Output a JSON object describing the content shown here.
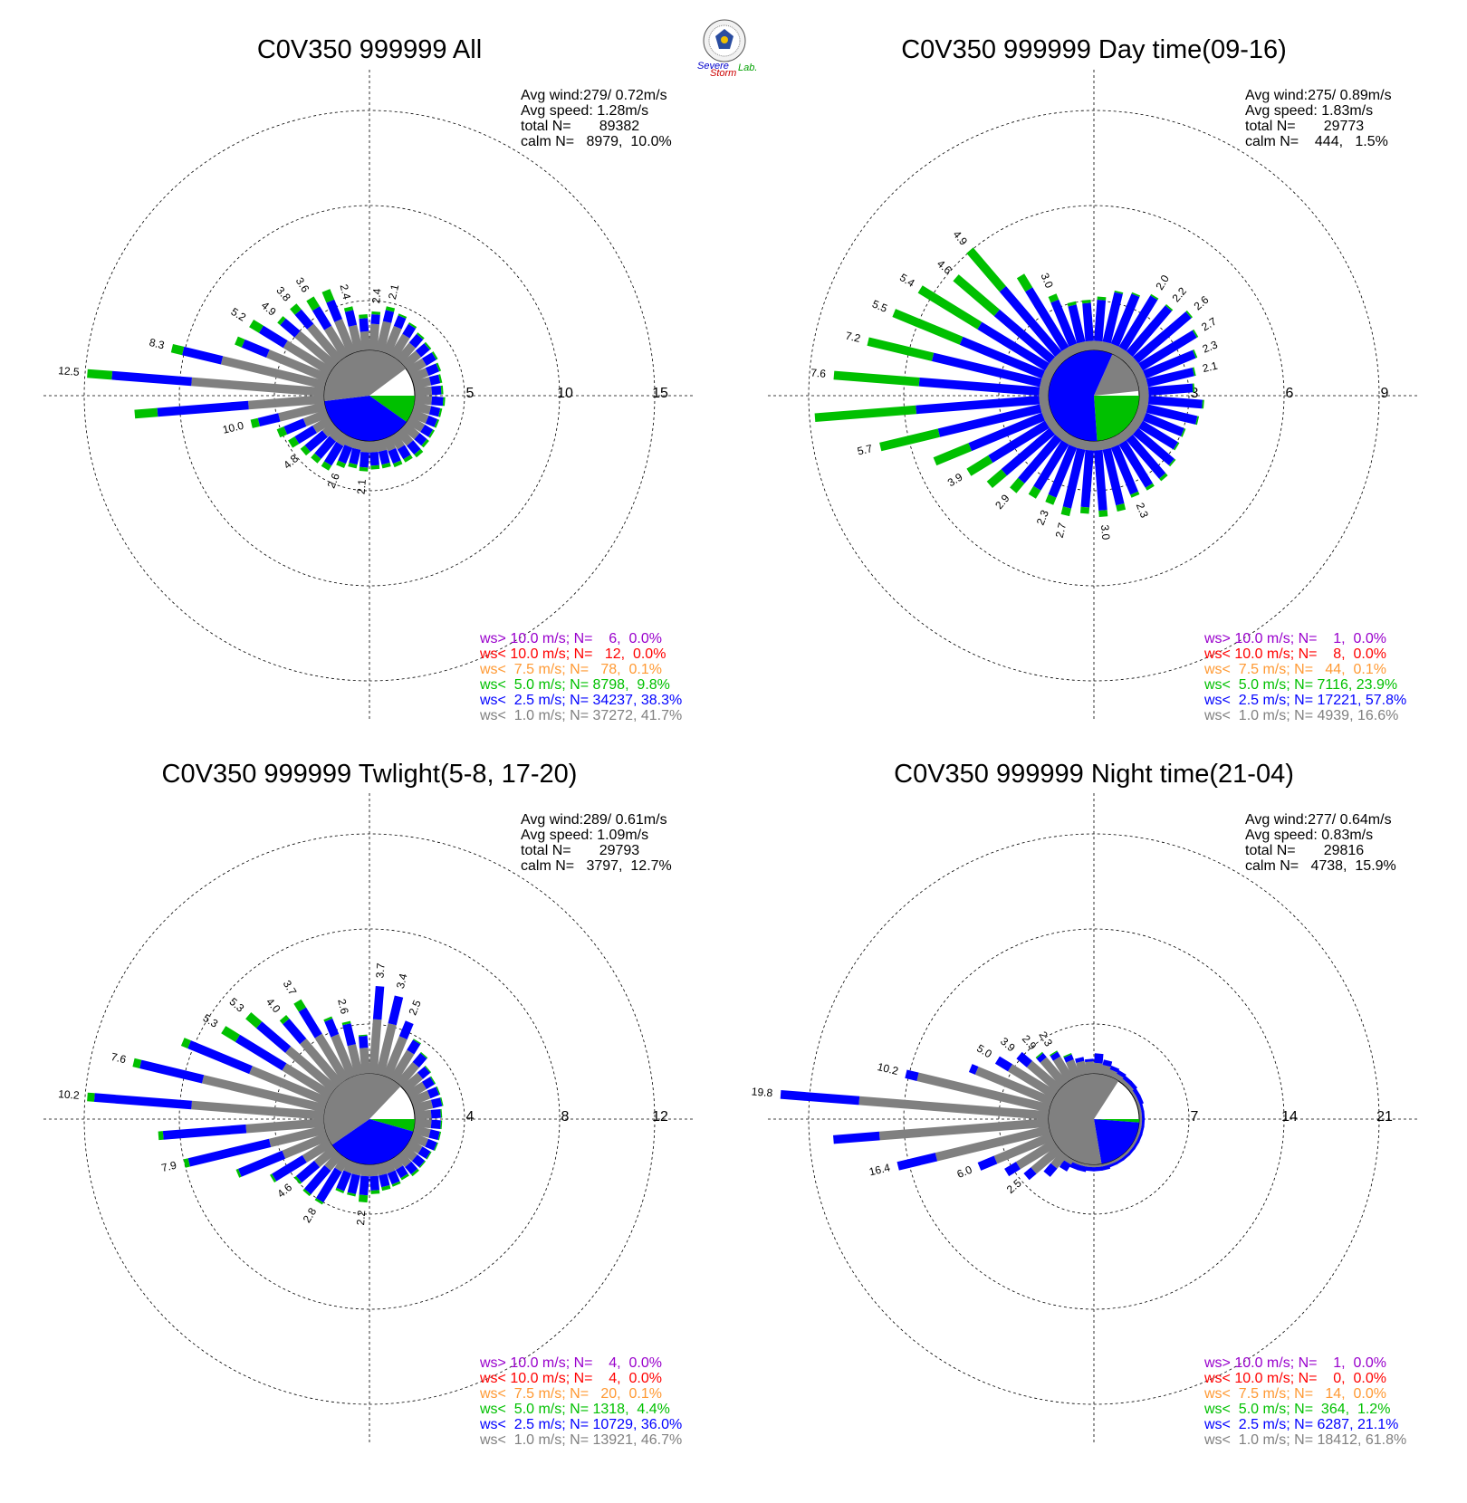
{
  "colors": {
    "lt1": "#808080",
    "lt25": "#0000ff",
    "lt5": "#00c000",
    "lt75": "#ff9933",
    "lt10": "#ff0000",
    "gt10": "#9900cc"
  },
  "logo": {
    "text1": "Severe",
    "text2": "Storm",
    "text3": "Lab."
  },
  "legend_labels": [
    {
      "key": "gt10",
      "prefix": "ws> 10.0 m/s; N="
    },
    {
      "key": "lt10",
      "prefix": "ws< 10.0 m/s; N="
    },
    {
      "key": "lt75",
      "prefix": "ws<  7.5 m/s; N="
    },
    {
      "key": "lt5",
      "prefix": "ws<  5.0 m/s; N="
    },
    {
      "key": "lt25",
      "prefix": "ws<  2.5 m/s; N="
    },
    {
      "key": "lt1",
      "prefix": "ws<  1.0 m/s; N="
    }
  ],
  "chart_data": [
    {
      "type": "wind-rose",
      "title": "C0V350 999999 All",
      "stats": [
        "Avg wind:279/ 0.72m/s",
        "Avg speed: 1.28m/s",
        "total N=       89382",
        "calm N=   8979,  10.0%"
      ],
      "rings": [
        5,
        10,
        15
      ],
      "ring_labels": [
        "5",
        "10",
        "15"
      ],
      "calm_percent": 10.0,
      "calm_pie": [
        {
          "key": "lt1",
          "percent": 41.7
        },
        {
          "key": "lt25",
          "percent": 38.3
        },
        {
          "key": "lt5",
          "percent": 9.8
        }
      ],
      "sectors": [
        [
          1.4,
          0.5,
          0.15
        ],
        [
          1.6,
          0.6,
          0.2
        ],
        [
          1.5,
          0.6,
          0.1
        ],
        [
          1.3,
          0.6,
          0.1
        ],
        [
          1.1,
          0.6,
          0.1
        ],
        [
          1.0,
          0.6,
          0.1
        ],
        [
          1.0,
          0.6,
          0.1
        ],
        [
          0.9,
          0.6,
          0.1
        ],
        [
          0.9,
          0.5,
          0.1
        ],
        [
          0.9,
          0.5,
          0.1
        ],
        [
          0.9,
          0.6,
          0.1
        ],
        [
          0.9,
          0.5,
          0.1
        ],
        [
          0.9,
          0.5,
          0.1
        ],
        [
          0.9,
          0.5,
          0.1
        ],
        [
          0.9,
          0.5,
          0.15
        ],
        [
          0.9,
          0.6,
          0.2
        ],
        [
          0.8,
          0.6,
          0.2
        ],
        [
          0.7,
          0.7,
          0.2
        ],
        [
          0.6,
          0.7,
          0.2
        ],
        [
          0.6,
          0.7,
          0.2
        ],
        [
          0.6,
          0.8,
          0.2
        ],
        [
          0.5,
          0.8,
          0.2
        ],
        [
          0.5,
          0.9,
          0.25
        ],
        [
          0.6,
          1.2,
          0.3
        ],
        [
          0.6,
          1.2,
          0.3
        ],
        [
          0.7,
          1.2,
          0.3
        ],
        [
          1.0,
          1.1,
          0.4
        ],
        [
          1.3,
          1.1,
          0.4
        ],
        [
          2.5,
          1.1,
          0.4
        ],
        [
          4.0,
          4.8,
          1.2
        ],
        [
          7.0,
          4.2,
          1.3
        ],
        [
          5.6,
          2.1,
          0.6
        ],
        [
          3.4,
          1.4,
          0.4
        ],
        [
          2.8,
          1.5,
          0.6
        ],
        [
          2.6,
          1.0,
          0.2
        ],
        [
          2.4,
          1.0,
          0.4
        ],
        [
          1.8,
          1.2,
          0.6
        ],
        [
          1.9,
          1.1,
          0.6
        ],
        [
          1.4,
          0.8,
          0.2
        ],
        [
          1.0,
          0.7,
          0.2
        ]
      ],
      "bar_labels": [
        {
          "sector": 0,
          "text": "2.4"
        },
        {
          "sector": 1,
          "text": "2.1"
        },
        {
          "sector": 20,
          "text": "2.1"
        },
        {
          "sector": 22,
          "text": "2.6"
        },
        {
          "sector": 25,
          "text": "4.8"
        },
        {
          "sector": 28,
          "text": "10.0"
        },
        {
          "sector": 30,
          "text": "12.5"
        },
        {
          "sector": 31,
          "text": "8.3"
        },
        {
          "sector": 33,
          "text": "5.2"
        },
        {
          "sector": 34,
          "text": "4.9"
        },
        {
          "sector": 35,
          "text": "3.8"
        },
        {
          "sector": 36,
          "text": "3.6"
        },
        {
          "sector": 38,
          "text": "2.4"
        }
      ],
      "legend_counts": [
        "   6,  0.0%",
        "  12,  0.0%",
        "  78,  0.1%",
        "8798,  9.8%",
        "34237, 38.3%",
        "37272, 41.7%"
      ]
    },
    {
      "type": "wind-rose",
      "title": "C0V350 999999 Day time(09-16)",
      "stats": [
        "Avg wind:275/ 0.89m/s",
        "Avg speed: 1.83m/s",
        "total N=       29773",
        "calm N=    444,   1.5%"
      ],
      "rings": [
        3,
        6,
        9
      ],
      "ring_labels": [
        "3",
        "6",
        "9"
      ],
      "calm_percent": 1.5,
      "calm_pie": [
        {
          "key": "lt25",
          "percent": 57.8
        },
        {
          "key": "lt5",
          "percent": 23.9
        },
        {
          "key": "lt1",
          "percent": 16.6
        }
      ],
      "sectors": [
        [
          0.3,
          1.3,
          0.1
        ],
        [
          0.3,
          1.6,
          0.05
        ],
        [
          0.3,
          1.7,
          0.05
        ],
        [
          0.3,
          1.9,
          0.05
        ],
        [
          0.3,
          1.9,
          0.05
        ],
        [
          0.3,
          2.2,
          0.05
        ],
        [
          0.3,
          2.0,
          0.05
        ],
        [
          0.3,
          1.7,
          0.05
        ],
        [
          0.3,
          1.5,
          0.05
        ],
        [
          0.3,
          1.4,
          0.05
        ],
        [
          0.3,
          1.7,
          0.05
        ],
        [
          0.3,
          1.6,
          0.05
        ],
        [
          0.3,
          1.3,
          0.05
        ],
        [
          0.3,
          1.3,
          0.05
        ],
        [
          0.3,
          1.5,
          0.05
        ],
        [
          0.3,
          1.6,
          0.1
        ],
        [
          0.3,
          1.6,
          0.1
        ],
        [
          0.3,
          1.6,
          0.1
        ],
        [
          0.3,
          1.8,
          0.2
        ],
        [
          0.3,
          1.9,
          0.2
        ],
        [
          0.3,
          1.8,
          0.2
        ],
        [
          0.3,
          1.9,
          0.25
        ],
        [
          0.3,
          1.7,
          0.25
        ],
        [
          0.3,
          1.7,
          0.3
        ],
        [
          0.3,
          1.8,
          0.4
        ],
        [
          0.3,
          2.0,
          0.6
        ],
        [
          0.3,
          2.1,
          0.8
        ],
        [
          0.3,
          2.5,
          1.2
        ],
        [
          0.3,
          3.3,
          1.9
        ],
        [
          0.3,
          3.9,
          3.2
        ],
        [
          0.3,
          3.8,
          2.7
        ],
        [
          0.3,
          3.5,
          2.1
        ],
        [
          0.3,
          2.8,
          2.3
        ],
        [
          0.3,
          2.5,
          2.2
        ],
        [
          0.3,
          2.3,
          1.7
        ],
        [
          0.3,
          2.7,
          1.6
        ],
        [
          0.3,
          2.2,
          0.5
        ],
        [
          0.3,
          1.5,
          0.2
        ],
        [
          0.3,
          1.2,
          0.1
        ],
        [
          0.3,
          1.2,
          0.1
        ]
      ],
      "bar_labels": [
        {
          "sector": 3,
          "text": "2.0"
        },
        {
          "sector": 4,
          "text": "2.2"
        },
        {
          "sector": 5,
          "text": "2.6"
        },
        {
          "sector": 6,
          "text": "2.7"
        },
        {
          "sector": 7,
          "text": "2.3"
        },
        {
          "sector": 8,
          "text": "2.1"
        },
        {
          "sector": 17,
          "text": "2.3"
        },
        {
          "sector": 19,
          "text": "3.0"
        },
        {
          "sector": 21,
          "text": "2.7"
        },
        {
          "sector": 22,
          "text": "2.3"
        },
        {
          "sector": 24,
          "text": "2.9"
        },
        {
          "sector": 26,
          "text": "3.9"
        },
        {
          "sector": 28,
          "text": "5.7"
        },
        {
          "sector": 30,
          "text": "7.6"
        },
        {
          "sector": 31,
          "text": "7.2"
        },
        {
          "sector": 32,
          "text": "5.5"
        },
        {
          "sector": 33,
          "text": "5.4"
        },
        {
          "sector": 34,
          "text": "4.6"
        },
        {
          "sector": 35,
          "text": "4.9"
        },
        {
          "sector": 37,
          "text": "3.0"
        }
      ],
      "legend_counts": [
        "   1,  0.0%",
        "   8,  0.0%",
        "  44,  0.1%",
        "7116, 23.9%",
        "17221, 57.8%",
        "4939, 16.6%"
      ]
    },
    {
      "type": "wind-rose",
      "title": "C0V350 999999 Twlight(5-8, 17-20)",
      "stats": [
        "Avg wind:289/ 0.61m/s",
        "Avg speed: 1.09m/s",
        "total N=       29793",
        "calm N=   3797,  12.7%"
      ],
      "rings": [
        4,
        8,
        12
      ],
      "ring_labels": [
        "4",
        "8",
        "12"
      ],
      "calm_percent": 12.7,
      "calm_pie": [
        {
          "key": "lt1",
          "percent": 46.7
        },
        {
          "key": "lt25",
          "percent": 36.0
        },
        {
          "key": "lt5",
          "percent": 4.4
        }
      ],
      "sectors": [
        [
          2.3,
          1.4,
          0.0
        ],
        [
          2.2,
          1.2,
          0.0
        ],
        [
          1.8,
          0.7,
          0.0
        ],
        [
          1.4,
          0.5,
          0.05
        ],
        [
          1.1,
          0.5,
          0.05
        ],
        [
          0.9,
          0.4,
          0.05
        ],
        [
          0.8,
          0.4,
          0.05
        ],
        [
          0.8,
          0.4,
          0.05
        ],
        [
          0.8,
          0.4,
          0.05
        ],
        [
          0.7,
          0.4,
          0.05
        ],
        [
          0.7,
          0.4,
          0.05
        ],
        [
          0.7,
          0.4,
          0.05
        ],
        [
          0.7,
          0.4,
          0.05
        ],
        [
          0.6,
          0.4,
          0.05
        ],
        [
          0.6,
          0.4,
          0.05
        ],
        [
          0.6,
          0.4,
          0.1
        ],
        [
          0.5,
          0.4,
          0.1
        ],
        [
          0.5,
          0.5,
          0.1
        ],
        [
          0.5,
          0.5,
          0.15
        ],
        [
          0.5,
          0.6,
          0.15
        ],
        [
          0.5,
          0.8,
          0.3
        ],
        [
          0.5,
          0.8,
          0.1
        ],
        [
          0.5,
          0.8,
          0.1
        ],
        [
          0.6,
          1.5,
          0.1
        ],
        [
          0.8,
          1.3,
          0.1
        ],
        [
          1.0,
          1.0,
          0.1
        ],
        [
          1.3,
          1.5,
          0.1
        ],
        [
          2.0,
          2.0,
          0.1
        ],
        [
          2.4,
          3.5,
          0.2
        ],
        [
          3.3,
          3.5,
          0.2
        ],
        [
          5.6,
          4.1,
          0.3
        ],
        [
          5.3,
          2.7,
          0.3
        ],
        [
          3.5,
          2.8,
          0.3
        ],
        [
          2.3,
          2.3,
          0.7
        ],
        [
          2.6,
          1.6,
          0.6
        ],
        [
          2.4,
          1.1,
          0.2
        ],
        [
          2.2,
          1.3,
          0.4
        ],
        [
          1.9,
          0.7,
          0.1
        ],
        [
          1.3,
          0.9,
          0.1
        ],
        [
          1.1,
          0.5,
          0.05
        ]
      ],
      "bar_labels": [
        {
          "sector": 0,
          "text": "3.7"
        },
        {
          "sector": 1,
          "text": "3.4"
        },
        {
          "sector": 2,
          "text": "2.5"
        },
        {
          "sector": 20,
          "text": "2.2"
        },
        {
          "sector": 23,
          "text": "2.8"
        },
        {
          "sector": 25,
          "text": "4.6"
        },
        {
          "sector": 28,
          "text": "7.9"
        },
        {
          "sector": 30,
          "text": "10.2"
        },
        {
          "sector": 31,
          "text": "7.6"
        },
        {
          "sector": 33,
          "text": "5.3"
        },
        {
          "sector": 34,
          "text": "5.3"
        },
        {
          "sector": 35,
          "text": "4.0"
        },
        {
          "sector": 36,
          "text": "3.7"
        },
        {
          "sector": 38,
          "text": "2.6"
        }
      ],
      "legend_counts": [
        "   4,  0.0%",
        "   4,  0.0%",
        "  20,  0.1%",
        "1318,  4.4%",
        "10729, 36.0%",
        "13921, 46.7%"
      ]
    },
    {
      "type": "wind-rose",
      "title": "C0V350 999999 Night time(21-04)",
      "stats": [
        "Avg wind:277/ 0.64m/s",
        "Avg speed: 0.83m/s",
        "total N=       29816",
        "calm N=   4738,  15.9%"
      ],
      "rings": [
        7,
        14,
        21
      ],
      "ring_labels": [
        "7",
        "14",
        "21"
      ],
      "calm_percent": 15.9,
      "calm_pie": [
        {
          "key": "lt1",
          "percent": 61.8
        },
        {
          "key": "lt25",
          "percent": 21.1
        },
        {
          "key": "lt5",
          "percent": 1.2
        }
      ],
      "sectors": [
        [
          0.8,
          0.7,
          0.0
        ],
        [
          0.7,
          0.4,
          0.0
        ],
        [
          0.5,
          0.3,
          0.0
        ],
        [
          0.4,
          0.3,
          0.0
        ],
        [
          0.3,
          0.3,
          0.0
        ],
        [
          0.3,
          0.3,
          0.0
        ],
        [
          0.2,
          0.3,
          0.0
        ],
        [
          0.2,
          0.3,
          0.0
        ],
        [
          0.2,
          0.2,
          0.0
        ],
        [
          0.2,
          0.2,
          0.0
        ],
        [
          0.2,
          0.2,
          0.0
        ],
        [
          0.2,
          0.2,
          0.0
        ],
        [
          0.2,
          0.2,
          0.0
        ],
        [
          0.2,
          0.2,
          0.0
        ],
        [
          0.2,
          0.2,
          0.0
        ],
        [
          0.2,
          0.2,
          0.0
        ],
        [
          0.2,
          0.2,
          0.0
        ],
        [
          0.2,
          0.2,
          0.0
        ],
        [
          0.2,
          0.3,
          0.0
        ],
        [
          0.2,
          0.3,
          0.0
        ],
        [
          0.2,
          0.3,
          0.0
        ],
        [
          0.2,
          0.4,
          0.0
        ],
        [
          0.2,
          0.4,
          0.0
        ],
        [
          0.4,
          0.6,
          0.0
        ],
        [
          1.2,
          0.8,
          0.0
        ],
        [
          2.5,
          0.7,
          0.0
        ],
        [
          3.2,
          1.0,
          0.0
        ],
        [
          4.5,
          1.3,
          0.0
        ],
        [
          8.6,
          2.9,
          0.0
        ],
        [
          12.5,
          3.4,
          0.0
        ],
        [
          14.0,
          5.8,
          0.0
        ],
        [
          10.0,
          0.9,
          0.0
        ],
        [
          6.0,
          0.5,
          0.0
        ],
        [
          3.9,
          1.1,
          0.0
        ],
        [
          2.9,
          1.0,
          0.0
        ],
        [
          2.4,
          0.4,
          0.1
        ],
        [
          1.9,
          0.4,
          0.1
        ],
        [
          1.3,
          0.4,
          0.1
        ],
        [
          1.0,
          0.3,
          0.0
        ],
        [
          0.9,
          0.2,
          0.0
        ]
      ],
      "bar_labels": [
        {
          "sector": 25,
          "text": "2.5"
        },
        {
          "sector": 27,
          "text": "6.0"
        },
        {
          "sector": 28,
          "text": "16.4"
        },
        {
          "sector": 30,
          "text": "19.8"
        },
        {
          "sector": 31,
          "text": "10.2"
        },
        {
          "sector": 33,
          "text": "5.0"
        },
        {
          "sector": 34,
          "text": "3.9"
        },
        {
          "sector": 35,
          "text": "2.9"
        },
        {
          "sector": 36,
          "text": "2.3"
        }
      ],
      "legend_counts": [
        "   1,  0.0%",
        "   0,  0.0%",
        "  14,  0.0%",
        " 364,  1.2%",
        "6287, 21.1%",
        "18412, 61.8%"
      ]
    }
  ]
}
